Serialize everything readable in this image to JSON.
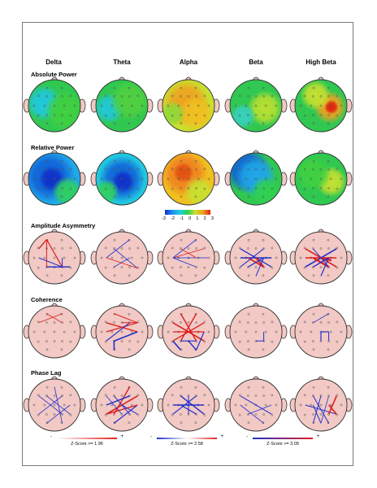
{
  "bands": [
    "Delta",
    "Theta",
    "Alpha",
    "Beta",
    "High Beta"
  ],
  "rows": [
    {
      "label": "Absolute Power",
      "kind": "map"
    },
    {
      "label": "Relative Power",
      "kind": "map"
    },
    {
      "label": "Amplitude Asymmetry",
      "kind": "conn"
    },
    {
      "label": "Coherence",
      "kind": "conn"
    },
    {
      "label": "Phase Lag",
      "kind": "conn"
    }
  ],
  "colorbar": {
    "ticks": [
      "-3",
      "-2",
      "-1",
      "0",
      "1",
      "2",
      "3"
    ]
  },
  "legends": [
    {
      "minus": "-",
      "plus": "+",
      "caption": "Z-Score >= 1.96"
    },
    {
      "minus": "-",
      "plus": "+",
      "caption": "Z-Score >= 2.58"
    },
    {
      "minus": "-",
      "plus": "+",
      "caption": "Z-Score >= 3.09"
    }
  ],
  "colors": {
    "red": "#dd1f1f",
    "blue": "#1f2fcc",
    "head_fill": "#f2c9c4",
    "outline": "#333333"
  }
}
